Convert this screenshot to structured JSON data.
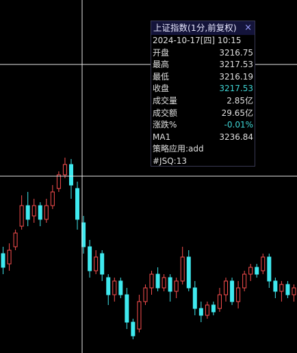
{
  "chart_data": {
    "type": "candlestick",
    "up_color": "#ff5050",
    "down_color": "#3fe9ef",
    "ylim": [
      3204.63,
      3230.38
    ],
    "open": [
      3211.88,
      3211.13,
      3212.38,
      3213.88,
      3215.38,
      3214.63,
      3215.38,
      3214.38,
      3215.38,
      3216.63,
      3217.63,
      3218.38,
      3216.63,
      3214.13,
      3212.38,
      3210.63,
      3211.88,
      3210.13,
      3208.88,
      3209.88,
      3208.88,
      3206.88,
      3206.38,
      3208.38,
      3209.38,
      3210.38,
      3209.38,
      3210.13,
      3209.13,
      3209.88,
      3211.63,
      3209.38,
      3207.88,
      3207.38,
      3208.13,
      3207.88,
      3208.88,
      3209.88,
      3208.38,
      3209.38,
      3210.38,
      3210.88,
      3210.63,
      3211.63,
      3209.88,
      3209.13,
      3209.63,
      3208.88
    ],
    "high": [
      3212.38,
      3212.63,
      3213.63,
      3216.13,
      3216.38,
      3215.88,
      3215.63,
      3215.88,
      3216.88,
      3217.88,
      3218.88,
      3218.78,
      3217.13,
      3214.63,
      3212.88,
      3212.13,
      3212.13,
      3210.38,
      3210.13,
      3210.13,
      3209.38,
      3207.13,
      3208.88,
      3209.63,
      3210.63,
      3210.88,
      3210.38,
      3210.38,
      3210.13,
      3212.38,
      3212.13,
      3209.88,
      3208.38,
      3208.38,
      3208.38,
      3209.38,
      3210.13,
      3210.13,
      3209.88,
      3210.63,
      3211.13,
      3211.13,
      3211.88,
      3211.88,
      3210.13,
      3209.88,
      3209.88,
      3209.63
    ],
    "low": [
      3210.38,
      3210.63,
      3212.13,
      3213.63,
      3213.88,
      3214.13,
      3213.88,
      3214.13,
      3215.13,
      3216.38,
      3217.38,
      3215.88,
      3213.63,
      3211.88,
      3210.13,
      3210.38,
      3209.88,
      3208.13,
      3208.38,
      3208.63,
      3206.38,
      3205.63,
      3206.13,
      3208.13,
      3208.88,
      3209.13,
      3209.13,
      3208.38,
      3208.63,
      3209.63,
      3209.13,
      3207.38,
      3206.88,
      3207.13,
      3207.38,
      3207.63,
      3208.38,
      3208.13,
      3207.88,
      3209.13,
      3209.88,
      3210.13,
      3210.38,
      3209.38,
      3208.63,
      3208.38,
      3208.63,
      3208.38
    ],
    "close": [
      3210.88,
      3212.13,
      3213.38,
      3215.38,
      3214.38,
      3215.38,
      3214.38,
      3215.38,
      3216.38,
      3217.63,
      3218.38,
      3216.88,
      3214.38,
      3212.38,
      3210.63,
      3211.63,
      3210.38,
      3208.88,
      3209.88,
      3208.88,
      3206.88,
      3205.88,
      3208.38,
      3209.38,
      3210.38,
      3209.38,
      3210.13,
      3209.13,
      3209.88,
      3211.63,
      3209.38,
      3207.88,
      3207.38,
      3208.13,
      3207.63,
      3208.88,
      3209.88,
      3208.38,
      3209.38,
      3210.38,
      3210.88,
      3210.38,
      3211.63,
      3209.88,
      3209.13,
      3209.63,
      3208.88,
      3209.38
    ]
  },
  "tooltip": {
    "title": "上证指数(1分,前复权)",
    "close_icon": "×",
    "date": "2024-10-17[四] 10:15",
    "rows": [
      {
        "label": "开盘",
        "value": "3216.75"
      },
      {
        "label": "最高",
        "value": "3217.53"
      },
      {
        "label": "最低",
        "value": "3216.19"
      },
      {
        "label": "收盘",
        "value": "3217.53"
      },
      {
        "label": "成交量",
        "value": "2.85亿"
      },
      {
        "label": "成交额",
        "value": "29.65亿"
      },
      {
        "label": "涨跌%",
        "value": "-0.01%"
      },
      {
        "label": "MA1",
        "value": "3236.84"
      }
    ],
    "notes": [
      "策略应用:add",
      "#JSQ:13"
    ]
  }
}
